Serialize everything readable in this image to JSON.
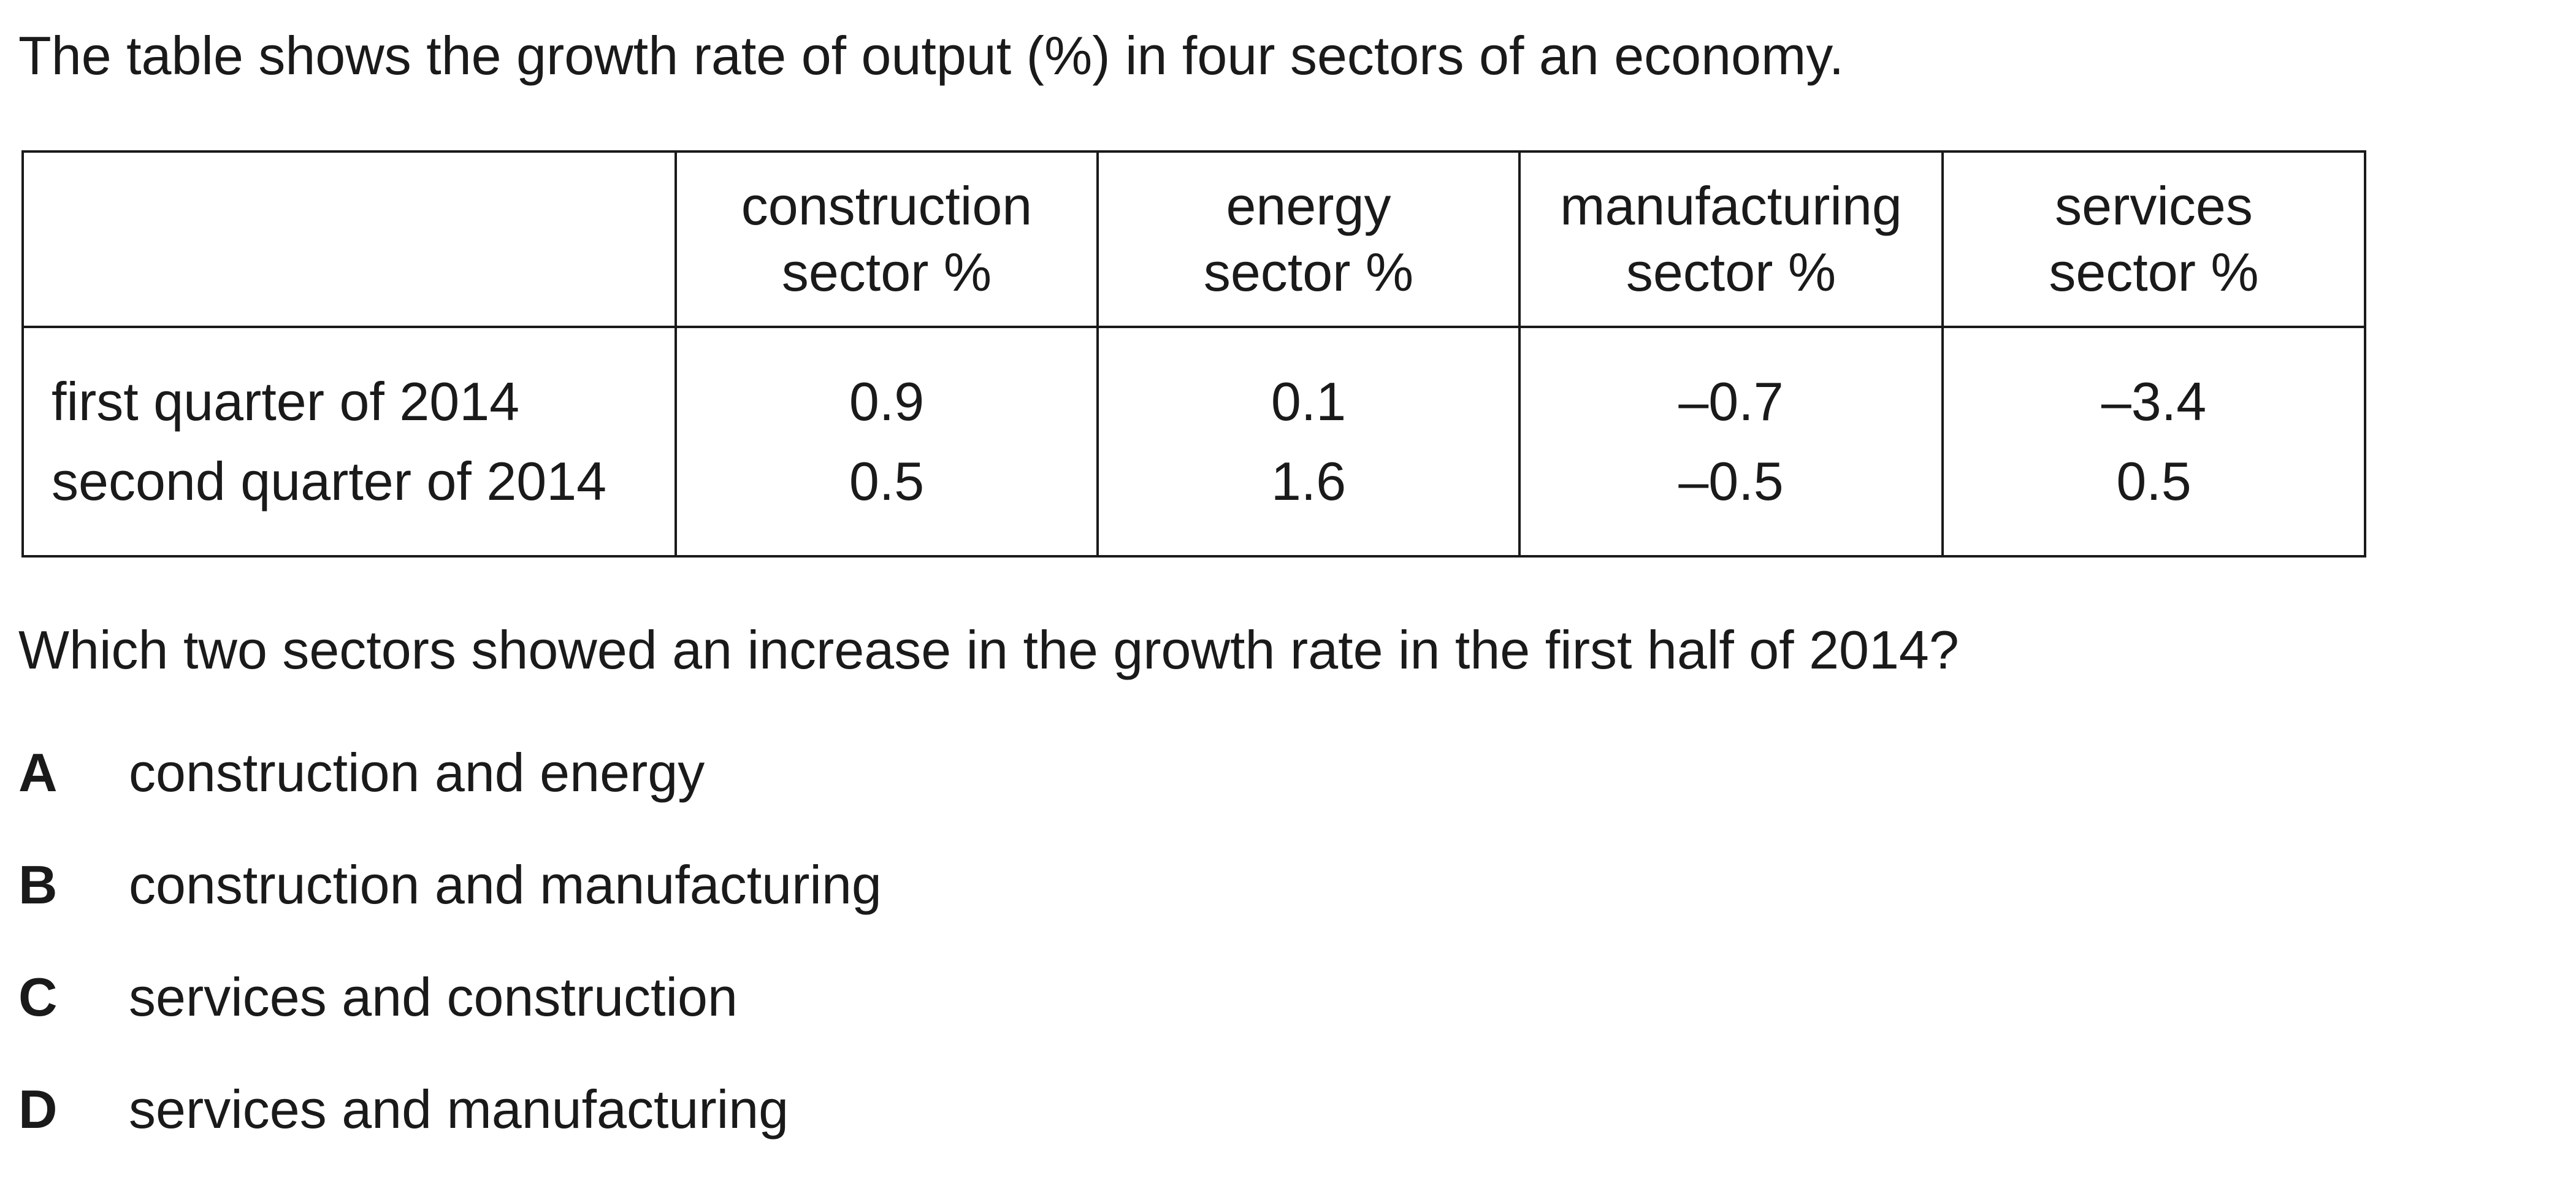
{
  "intro": "The table shows the growth rate of output (%) in four sectors of an economy.",
  "table": {
    "corner": "",
    "headers": [
      {
        "line1": "construction",
        "line2": "sector %"
      },
      {
        "line1": "energy",
        "line2": "sector %"
      },
      {
        "line1": "manufacturing",
        "line2": "sector %"
      },
      {
        "line1": "services",
        "line2": "sector %"
      }
    ],
    "rows": [
      {
        "label": "first quarter of 2014",
        "values": [
          "0.9",
          "0.1",
          "–0.7",
          "–3.4"
        ]
      },
      {
        "label": "second quarter of 2014",
        "values": [
          "0.5",
          "1.6",
          "–0.5",
          "0.5"
        ]
      }
    ]
  },
  "question": "Which two sectors showed an increase in the growth rate in the first half of 2014?",
  "options": [
    {
      "letter": "A",
      "text": "construction and energy"
    },
    {
      "letter": "B",
      "text": "construction and manufacturing"
    },
    {
      "letter": "C",
      "text": "services and construction"
    },
    {
      "letter": "D",
      "text": "services and manufacturing"
    }
  ]
}
